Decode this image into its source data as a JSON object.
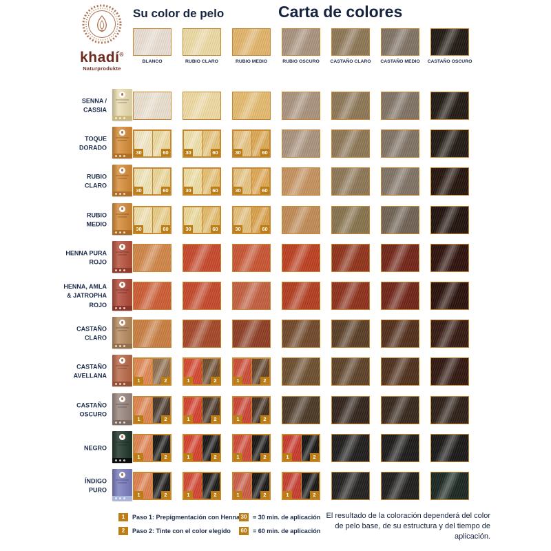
{
  "header": {
    "brand_name": "khadí",
    "brand_reg": "®",
    "brand_subtitle": "Naturprodukte",
    "left_title": "Su color de pelo",
    "right_title": "Carta de colores"
  },
  "base_colors": [
    {
      "label": "BLANCO",
      "color": "#e9ded2"
    },
    {
      "label": "RUBIO CLARO",
      "color": "#edd9a3"
    },
    {
      "label": "RUBIO MEDIO",
      "color": "#e2b368"
    },
    {
      "label": "RUBIO OSCURO",
      "color": "#a8917c"
    },
    {
      "label": "CASTAÑO CLARO",
      "color": "#8b7453"
    },
    {
      "label": "CASTAÑO MEDIO",
      "color": "#7e7062"
    },
    {
      "label": "CASTAÑO OSCURO",
      "color": "#1d150e"
    }
  ],
  "rows": [
    {
      "label_lines": [
        "SENNA /",
        "CASSIA"
      ],
      "box": {
        "bg": "#ecdfb4",
        "band": "#cdb87a"
      },
      "swatches": [
        {
          "type": "single",
          "color": "#eadfce"
        },
        {
          "type": "single",
          "color": "#eed9a0"
        },
        {
          "type": "single",
          "color": "#e4ba6d"
        },
        {
          "type": "single",
          "color": "#a8917c"
        },
        {
          "type": "single",
          "color": "#8b7453"
        },
        {
          "type": "single",
          "color": "#7e7062"
        },
        {
          "type": "single",
          "color": "#1d150e"
        }
      ]
    },
    {
      "label_lines": [
        "TOQUE",
        "DORADO"
      ],
      "box": {
        "bg": "#d98f3c",
        "band": "#b06f24"
      },
      "swatches": [
        {
          "type": "split",
          "left": "#f2e7c2",
          "right": "#edd99c",
          "badges": [
            "30",
            "60"
          ]
        },
        {
          "type": "split",
          "left": "#efe0a8",
          "right": "#e6c278",
          "badges": [
            "30",
            "60"
          ]
        },
        {
          "type": "split",
          "left": "#e6c27e",
          "right": "#dca852",
          "badges": [
            "30",
            "60"
          ]
        },
        {
          "type": "single",
          "color": "#a8917c"
        },
        {
          "type": "single",
          "color": "#8b7453"
        },
        {
          "type": "single",
          "color": "#7e7062"
        },
        {
          "type": "single",
          "color": "#1d150e"
        }
      ]
    },
    {
      "label_lines": [
        "RUBIO",
        "CLARO"
      ],
      "box": {
        "bg": "#d98f3c",
        "band": "#b06f24"
      },
      "swatches": [
        {
          "type": "split",
          "left": "#f0e3b4",
          "right": "#ebd594",
          "badges": [
            "30",
            "60"
          ]
        },
        {
          "type": "split",
          "left": "#eedea2",
          "right": "#e5bf70",
          "badges": [
            "30",
            "60"
          ]
        },
        {
          "type": "split",
          "left": "#e6c37f",
          "right": "#dfa754",
          "badges": [
            "30",
            "60"
          ]
        },
        {
          "type": "single",
          "color": "#c4905c"
        },
        {
          "type": "single",
          "color": "#8b7453"
        },
        {
          "type": "single",
          "color": "#7e7062"
        },
        {
          "type": "single",
          "color": "#200f08"
        }
      ]
    },
    {
      "label_lines": [
        "RUBIO",
        "MEDIO"
      ],
      "box": {
        "bg": "#d68c3a",
        "band": "#ad6c22"
      },
      "swatches": [
        {
          "type": "split",
          "left": "#efdfab",
          "right": "#e9cc84",
          "badges": [
            "30",
            "60"
          ]
        },
        {
          "type": "split",
          "left": "#ecd795",
          "right": "#e2ba68",
          "badges": [
            "30",
            "60"
          ]
        },
        {
          "type": "split",
          "left": "#e4bf79",
          "right": "#d99f48",
          "badges": [
            "30",
            "60"
          ]
        },
        {
          "type": "single",
          "color": "#bf8952"
        },
        {
          "type": "single",
          "color": "#857049"
        },
        {
          "type": "single",
          "color": "#6e6051"
        },
        {
          "type": "single",
          "color": "#1c0d07"
        }
      ]
    },
    {
      "label_lines": [
        "HENNA PURA",
        "ROJO"
      ],
      "box": {
        "bg": "#b9543f",
        "band": "#8f3a2a"
      },
      "swatches": [
        {
          "type": "single",
          "color": "#d08445"
        },
        {
          "type": "single",
          "color": "#c64527"
        },
        {
          "type": "single",
          "color": "#c7522f"
        },
        {
          "type": "single",
          "color": "#bc3c1c"
        },
        {
          "type": "single",
          "color": "#8f2f16"
        },
        {
          "type": "single",
          "color": "#702113"
        },
        {
          "type": "single",
          "color": "#2a0c06"
        }
      ]
    },
    {
      "label_lines": [
        "HENNA, AMLA",
        "& JATROPHA",
        "ROJO"
      ],
      "box": {
        "bg": "#b44d3c",
        "band": "#8a3528"
      },
      "swatches": [
        {
          "type": "single",
          "color": "#cc5a31"
        },
        {
          "type": "single",
          "color": "#c44527"
        },
        {
          "type": "single",
          "color": "#c25c3c"
        },
        {
          "type": "single",
          "color": "#b23a1c"
        },
        {
          "type": "single",
          "color": "#8c2d17"
        },
        {
          "type": "single",
          "color": "#6d2012"
        },
        {
          "type": "single",
          "color": "#260c06"
        }
      ]
    },
    {
      "label_lines": [
        "CASTAÑO",
        "CLARO"
      ],
      "box": {
        "bg": "#b98e63",
        "band": "#94704a"
      },
      "swatches": [
        {
          "type": "single",
          "color": "#c87c3e"
        },
        {
          "type": "single",
          "color": "#a34424"
        },
        {
          "type": "single",
          "color": "#8c3a20"
        },
        {
          "type": "single",
          "color": "#6e4527"
        },
        {
          "type": "single",
          "color": "#563a21"
        },
        {
          "type": "single",
          "color": "#4e2a16"
        },
        {
          "type": "single",
          "color": "#31150c"
        }
      ]
    },
    {
      "label_lines": [
        "CASTAÑO",
        "AVELLANA"
      ],
      "box": {
        "bg": "#bc6c4c",
        "band": "#954f33"
      },
      "swatches": [
        {
          "type": "split",
          "left": "#e08652",
          "right": "#8d6b49",
          "badges": [
            "1",
            "2"
          ]
        },
        {
          "type": "split",
          "left": "#d4452e",
          "right": "#6b4a2c",
          "badges": [
            "1",
            "2"
          ]
        },
        {
          "type": "split",
          "left": "#cb4a34",
          "right": "#5f4024",
          "badges": [
            "1",
            "2"
          ]
        },
        {
          "type": "single",
          "color": "#6b4c2c"
        },
        {
          "type": "single",
          "color": "#5a3e24"
        },
        {
          "type": "single",
          "color": "#4c2c18"
        },
        {
          "type": "single",
          "color": "#2d130b"
        }
      ]
    },
    {
      "label_lines": [
        "CASTAÑO",
        "OSCURO"
      ],
      "box": {
        "bg": "#9c8a82",
        "band": "#7a6a62"
      },
      "swatches": [
        {
          "type": "split",
          "left": "#df8450",
          "right": "#463426",
          "badges": [
            "1",
            "2"
          ]
        },
        {
          "type": "split",
          "left": "#d43f2c",
          "right": "#443020",
          "badges": [
            "1",
            "2"
          ]
        },
        {
          "type": "split",
          "left": "#cb4232",
          "right": "#3e2a1a",
          "badges": [
            "1",
            "2"
          ]
        },
        {
          "type": "single",
          "color": "#483522"
        },
        {
          "type": "single",
          "color": "#2e2017"
        },
        {
          "type": "single",
          "color": "#332317"
        },
        {
          "type": "single",
          "color": "#291b12"
        }
      ]
    },
    {
      "label_lines": [
        "NEGRO"
      ],
      "box": {
        "bg": "#24392e",
        "band": "#0d0d0d"
      },
      "swatches": [
        {
          "type": "split",
          "left": "#e0814e",
          "right": "#151412",
          "badges": [
            "1",
            "2"
          ]
        },
        {
          "type": "split",
          "left": "#d53f2b",
          "right": "#141312",
          "badges": [
            "1",
            "2"
          ]
        },
        {
          "type": "split",
          "left": "#cf4634",
          "right": "#131211",
          "badges": [
            "1",
            "2"
          ]
        },
        {
          "type": "split",
          "left": "#c9372a",
          "right": "#121110",
          "badges": [
            "1",
            "2"
          ]
        },
        {
          "type": "single",
          "color": "#1a1918"
        },
        {
          "type": "single",
          "color": "#171615"
        },
        {
          "type": "single",
          "color": "#141312"
        }
      ]
    },
    {
      "label_lines": [
        "ÍNDIGO",
        "PURO"
      ],
      "box": {
        "bg": "#7d80c0",
        "band": "#a9b4dc"
      },
      "swatches": [
        {
          "type": "split",
          "left": "#de7f4c",
          "right": "#161514",
          "badges": [
            "1",
            "2"
          ]
        },
        {
          "type": "split",
          "left": "#d24330",
          "right": "#151413",
          "badges": [
            "1",
            "2"
          ]
        },
        {
          "type": "split",
          "left": "#cb5a44",
          "right": "#141312",
          "badges": [
            "1",
            "2"
          ]
        },
        {
          "type": "split",
          "left": "#c63a2c",
          "right": "#121110",
          "badges": [
            "1",
            "2"
          ]
        },
        {
          "type": "single",
          "color": "#1d1c1b"
        },
        {
          "type": "single",
          "color": "#1a1918"
        },
        {
          "type": "single",
          "color": "#16231c"
        }
      ]
    }
  ],
  "legend": {
    "steps": [
      {
        "badge": "1",
        "text": "Paso 1: Prepigmentación con Henna"
      },
      {
        "badge": "2",
        "text": "Paso 2: Tinte con el color elegido"
      }
    ],
    "times": [
      {
        "badge": "30",
        "text": "= 30 min. de aplicación"
      },
      {
        "badge": "60",
        "text": "= 60 min. de aplicación"
      }
    ],
    "note": "El resultado de la coloración dependerá del color de pelo base, de su estructura y del tiempo de aplicación."
  },
  "colors": {
    "accent_border": "#c98830",
    "badge": "#bd7d16",
    "navy_text": "#16233f",
    "brand_red": "#6e2b1d",
    "logo_copper": "#b0714f"
  }
}
